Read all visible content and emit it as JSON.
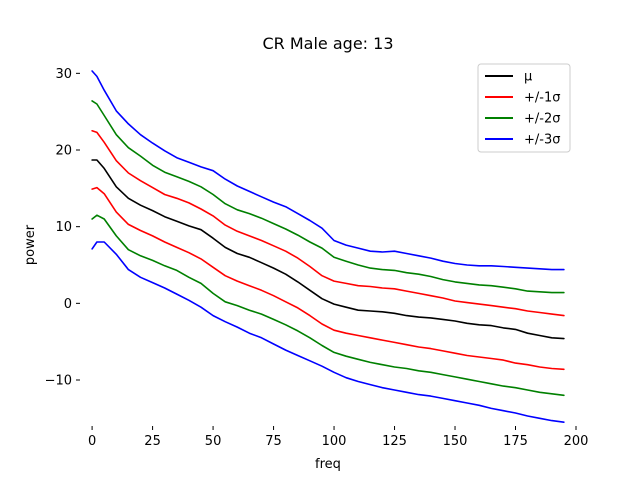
{
  "chart_data": {
    "type": "line",
    "title": "CR Male age: 13",
    "xlabel": "freq",
    "ylabel": "power",
    "xlim": [
      -5,
      200
    ],
    "ylim": [
      -16,
      32
    ],
    "xticks": [
      0,
      25,
      50,
      75,
      100,
      125,
      150,
      175,
      200
    ],
    "yticks": [
      -10,
      0,
      10,
      20,
      30
    ],
    "grid": false,
    "legend_position": "top-right",
    "x": [
      0,
      2,
      5,
      10,
      15,
      20,
      25,
      30,
      35,
      40,
      45,
      50,
      55,
      60,
      65,
      70,
      75,
      80,
      85,
      90,
      95,
      100,
      105,
      110,
      115,
      120,
      125,
      130,
      135,
      140,
      145,
      150,
      155,
      160,
      165,
      170,
      175,
      180,
      185,
      190,
      195
    ],
    "series": [
      {
        "name": "μ",
        "color": "#000000",
        "values": [
          18.7,
          18.7,
          17.6,
          15.2,
          13.7,
          12.8,
          12.1,
          11.3,
          10.7,
          10.1,
          9.6,
          8.5,
          7.3,
          6.5,
          6.0,
          5.3,
          4.6,
          3.8,
          2.8,
          1.7,
          0.6,
          -0.1,
          -0.5,
          -0.9,
          -1.0,
          -1.1,
          -1.3,
          -1.6,
          -1.8,
          -1.9,
          -2.1,
          -2.3,
          -2.6,
          -2.8,
          -2.9,
          -3.2,
          -3.4,
          -3.9,
          -4.2,
          -4.5,
          -4.6
        ]
      },
      {
        "name": "+/-1σ",
        "color": "#ff0000",
        "values": [
          22.5,
          22.3,
          21.0,
          18.6,
          17.0,
          16.0,
          15.1,
          14.2,
          13.7,
          13.1,
          12.3,
          11.4,
          10.2,
          9.4,
          8.8,
          8.2,
          7.5,
          6.8,
          5.9,
          4.8,
          3.6,
          2.9,
          2.6,
          2.3,
          2.2,
          2.0,
          1.9,
          1.6,
          1.3,
          1.0,
          0.7,
          0.3,
          0.1,
          -0.1,
          -0.3,
          -0.5,
          -0.7,
          -1.0,
          -1.2,
          -1.4,
          -1.6
        ]
      },
      {
        "name": "+/-2σ",
        "color": "#008000",
        "values": [
          26.4,
          26.0,
          24.5,
          22.0,
          20.3,
          19.2,
          18.0,
          17.1,
          16.5,
          15.9,
          15.2,
          14.2,
          13.0,
          12.2,
          11.7,
          11.1,
          10.4,
          9.7,
          8.9,
          8.0,
          7.2,
          6.0,
          5.5,
          5.0,
          4.6,
          4.4,
          4.3,
          4.0,
          3.8,
          3.5,
          3.1,
          2.8,
          2.6,
          2.4,
          2.3,
          2.1,
          1.9,
          1.6,
          1.5,
          1.4,
          1.4
        ]
      },
      {
        "name": "+/-3σ",
        "color": "#0000ff",
        "values": [
          30.3,
          29.6,
          27.8,
          25.1,
          23.4,
          22.0,
          20.9,
          19.9,
          19.0,
          18.4,
          17.8,
          17.3,
          16.2,
          15.3,
          14.6,
          13.9,
          13.2,
          12.6,
          11.7,
          10.8,
          9.8,
          8.2,
          7.6,
          7.2,
          6.8,
          6.7,
          6.8,
          6.5,
          6.2,
          5.9,
          5.5,
          5.2,
          5.0,
          4.9,
          4.9,
          4.8,
          4.7,
          4.6,
          4.5,
          4.4,
          4.4
        ]
      },
      {
        "name": "",
        "color": "#ff0000",
        "values": [
          14.9,
          15.1,
          14.3,
          11.9,
          10.3,
          9.5,
          8.8,
          8.0,
          7.3,
          6.6,
          5.8,
          4.7,
          3.6,
          2.9,
          2.3,
          1.7,
          1.0,
          0.2,
          -0.6,
          -1.6,
          -2.7,
          -3.5,
          -3.9,
          -4.2,
          -4.5,
          -4.8,
          -5.1,
          -5.4,
          -5.7,
          -5.9,
          -6.2,
          -6.5,
          -6.8,
          -7.0,
          -7.2,
          -7.4,
          -7.8,
          -8.0,
          -8.3,
          -8.5,
          -8.6
        ]
      },
      {
        "name": "",
        "color": "#008000",
        "values": [
          11.0,
          11.5,
          11.0,
          8.8,
          7.0,
          6.2,
          5.6,
          4.9,
          4.3,
          3.4,
          2.6,
          1.3,
          0.2,
          -0.3,
          -0.9,
          -1.4,
          -2.1,
          -2.8,
          -3.6,
          -4.5,
          -5.5,
          -6.4,
          -6.9,
          -7.3,
          -7.7,
          -8.0,
          -8.3,
          -8.5,
          -8.8,
          -9.0,
          -9.3,
          -9.6,
          -9.9,
          -10.2,
          -10.5,
          -10.8,
          -11.0,
          -11.3,
          -11.6,
          -11.8,
          -12.0
        ]
      },
      {
        "name": "",
        "color": "#0000ff",
        "values": [
          7.1,
          8.0,
          8.0,
          6.4,
          4.4,
          3.4,
          2.7,
          2.0,
          1.2,
          0.4,
          -0.5,
          -1.6,
          -2.4,
          -3.1,
          -3.9,
          -4.5,
          -5.3,
          -6.1,
          -6.8,
          -7.5,
          -8.2,
          -9.0,
          -9.7,
          -10.2,
          -10.6,
          -11.0,
          -11.3,
          -11.6,
          -11.9,
          -12.1,
          -12.4,
          -12.7,
          -13.0,
          -13.3,
          -13.7,
          -14.0,
          -14.3,
          -14.7,
          -15.0,
          -15.3,
          -15.5
        ]
      }
    ]
  }
}
